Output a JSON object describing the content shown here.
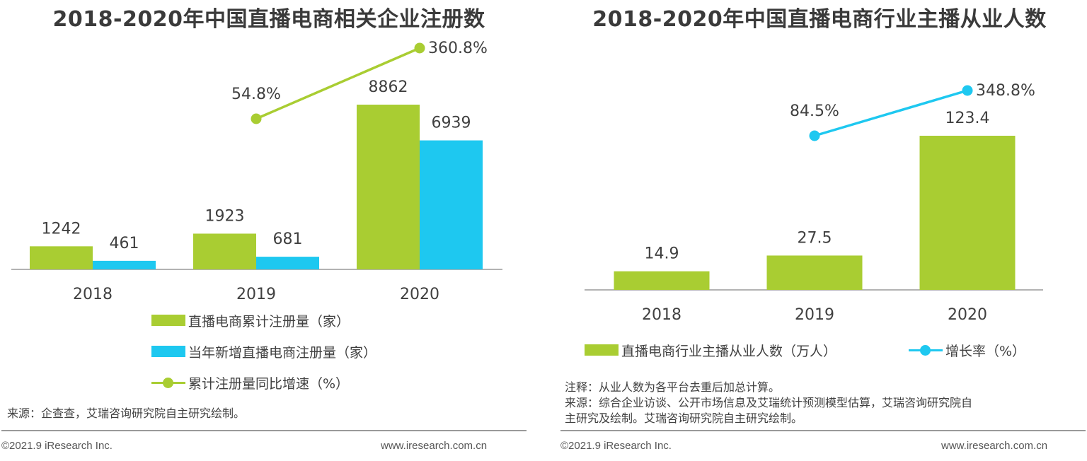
{
  "left": {
    "title": "2018-2020年中国直播电商相关企业注册数",
    "legend": {
      "bar1": "直播电商累计注册量（家）",
      "bar2": "当年新增直播电商注册量（家）",
      "line": "累计注册量同比增速（%）"
    },
    "source": "来源：企查查，艾瑞咨询研究院自主研究绘制。",
    "footer_left": "©2021.9 iResearch Inc.",
    "footer_right": "www.iresearch.com.cn"
  },
  "right": {
    "title": "2018-2020年中国直播电商行业主播从业人数",
    "legend": {
      "bar": "直播电商行业主播从业人数（万人）",
      "line": "增长率（%）"
    },
    "note_line1": "注释：从业人数为各平台去重后加总计算。",
    "note_line2": "来源：综合企业访谈、公开市场信息及艾瑞统计预测模型估算，艾瑞咨询研究院自",
    "note_line3": "主研究及绘制。艾瑞咨询研究院自主研究绘制。",
    "footer_left": "©2021.9 iResearch Inc.",
    "footer_right": "www.iresearch.com.cn"
  },
  "colors": {
    "green": "#a9cd32",
    "blue": "#1ec8f0",
    "axis": "#9a9a9a"
  },
  "chart_data": [
    {
      "type": "bar",
      "title": "2018-2020年中国直播电商相关企业注册数",
      "categories": [
        "2018",
        "2019",
        "2020"
      ],
      "series": [
        {
          "name": "直播电商累计注册量（家）",
          "values": [
            1242,
            1923,
            8862
          ],
          "labels": [
            "1242",
            "1923",
            "8862"
          ],
          "color": "#a9cd32"
        },
        {
          "name": "当年新增直播电商注册量（家）",
          "values": [
            461,
            681,
            6939
          ],
          "labels": [
            "461",
            "681",
            "6939"
          ],
          "color": "#1ec8f0"
        }
      ],
      "line_series": {
        "name": "累计注册量同比增速（%）",
        "type": "line",
        "values": [
          null,
          54.8,
          360.8
        ],
        "labels": [
          "",
          "54.8%",
          "360.8%"
        ],
        "color": "#a9cd32"
      },
      "legend_position": "bottom"
    },
    {
      "type": "bar",
      "title": "2018-2020年中国直播电商行业主播从业人数",
      "categories": [
        "2018",
        "2019",
        "2020"
      ],
      "series": [
        {
          "name": "直播电商行业主播从业人数（万人）",
          "values": [
            14.9,
            27.5,
            123.4
          ],
          "labels": [
            "14.9",
            "27.5",
            "123.4"
          ],
          "color": "#a9cd32"
        }
      ],
      "line_series": {
        "name": "增长率（%）",
        "type": "line",
        "values": [
          null,
          84.5,
          348.8
        ],
        "labels": [
          "",
          "84.5%",
          "348.8%"
        ],
        "color": "#1ec8f0"
      },
      "legend_position": "bottom"
    }
  ]
}
